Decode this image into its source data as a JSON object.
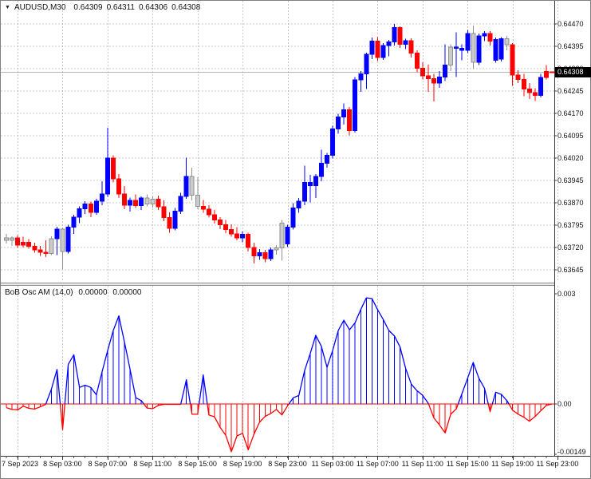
{
  "header": {
    "dropdown_icon": "▼",
    "symbol_period": "AUDUSD,M30",
    "open": "0.64309",
    "high": "0.64311",
    "low": "0.64306",
    "close": "0.64308"
  },
  "indicator": {
    "label": "BoB Osc AM (14,0)",
    "value1": "0.00000",
    "value2": "0.00000"
  },
  "price_axis": {
    "labels": [
      "0.64470",
      "0.64395",
      "0.64320",
      "0.64245",
      "0.64170",
      "0.64095",
      "0.64020",
      "0.63945",
      "0.63870",
      "0.63795",
      "0.63720",
      "0.63645"
    ],
    "current": "0.64308"
  },
  "time_axis": {
    "labels": [
      "7 Sep 2023",
      "8 Sep 03:00",
      "8 Sep 07:00",
      "8 Sep 11:00",
      "8 Sep 15:00",
      "8 Sep 19:00",
      "8 Sep 23:00",
      "11 Sep 03:00",
      "11 Sep 07:00",
      "11 Sep 11:00",
      "11 Sep 15:00",
      "11 Sep 19:00",
      "11 Sep 23:00"
    ]
  },
  "osc_axis": {
    "labels": [
      "0.003",
      "0.00",
      "-0.00149"
    ]
  },
  "colors": {
    "bull": "#0000ff",
    "bear": "#ff0000",
    "neutral_fill": "#cbcbcb",
    "neutral_border": "#8f8f8f",
    "grid": "#c9c9c9",
    "bid_line": "#b4b4b4",
    "zero_line": "#ff0000",
    "axis_line": "#333333",
    "frame": "#808080",
    "badge_bg": "#000000",
    "badge_text": "#ffffff"
  },
  "chart_data": {
    "type": "candlestick",
    "symbol": "AUDUSD",
    "timeframe": "M30",
    "title": "AUDUSD,M30",
    "price_ylim": [
      0.63645,
      0.6447
    ],
    "osc_ylim": [
      -0.00149,
      0.003
    ],
    "grid": true,
    "price_unit": 1e-05,
    "candles": [
      [
        63752,
        63766,
        63734,
        63744,
        "s"
      ],
      [
        63744,
        63758,
        63726,
        63752,
        "s"
      ],
      [
        63752,
        63760,
        63718,
        63728,
        "d"
      ],
      [
        63728,
        63756,
        63720,
        63738,
        "d"
      ],
      [
        63738,
        63748,
        63716,
        63724,
        "d"
      ],
      [
        63724,
        63736,
        63702,
        63712,
        "d"
      ],
      [
        63712,
        63726,
        63692,
        63704,
        "d"
      ],
      [
        63704,
        63744,
        63688,
        63700,
        "d"
      ],
      [
        63700,
        63758,
        63694,
        63750,
        "s"
      ],
      [
        63750,
        63790,
        63694,
        63782,
        "u"
      ],
      [
        63782,
        63786,
        63648,
        63706,
        "s"
      ],
      [
        63706,
        63796,
        63700,
        63788,
        "u"
      ],
      [
        63788,
        63830,
        63766,
        63822,
        "u"
      ],
      [
        63822,
        63858,
        63802,
        63850,
        "u"
      ],
      [
        63850,
        63876,
        63832,
        63866,
        "u"
      ],
      [
        63866,
        63874,
        63822,
        63838,
        "d"
      ],
      [
        63838,
        63884,
        63830,
        63876,
        "u"
      ],
      [
        63876,
        63942,
        63862,
        63900,
        "u"
      ],
      [
        63900,
        64122,
        63890,
        64020,
        "u"
      ],
      [
        64020,
        64030,
        63938,
        63950,
        "d"
      ],
      [
        63950,
        63966,
        63886,
        63900,
        "d"
      ],
      [
        63900,
        63926,
        63848,
        63862,
        "d"
      ],
      [
        63862,
        63888,
        63840,
        63878,
        "u"
      ],
      [
        63878,
        63898,
        63852,
        63860,
        "d"
      ],
      [
        63860,
        63892,
        63846,
        63886,
        "u"
      ],
      [
        63886,
        63898,
        63858,
        63866,
        "s"
      ],
      [
        63866,
        63892,
        63854,
        63882,
        "s"
      ],
      [
        63882,
        63894,
        63846,
        63856,
        "d"
      ],
      [
        63856,
        63878,
        63808,
        63820,
        "d"
      ],
      [
        63820,
        63838,
        63770,
        63784,
        "d"
      ],
      [
        63784,
        63852,
        63778,
        63842,
        "u"
      ],
      [
        63842,
        63904,
        63832,
        63892,
        "u"
      ],
      [
        63892,
        64022,
        63884,
        63958,
        "u"
      ],
      [
        63958,
        63988,
        63878,
        63896,
        "s"
      ],
      [
        63896,
        63956,
        63848,
        63858,
        "s"
      ],
      [
        63858,
        63880,
        63836,
        63848,
        "d"
      ],
      [
        63848,
        63862,
        63820,
        63830,
        "d"
      ],
      [
        63830,
        63846,
        63800,
        63812,
        "d"
      ],
      [
        63812,
        63822,
        63782,
        63796,
        "d"
      ],
      [
        63796,
        63812,
        63768,
        63780,
        "d"
      ],
      [
        63780,
        63798,
        63756,
        63766,
        "d"
      ],
      [
        63766,
        63788,
        63744,
        63752,
        "d"
      ],
      [
        63752,
        63774,
        63738,
        63764,
        "u"
      ],
      [
        63764,
        63770,
        63706,
        63720,
        "d"
      ],
      [
        63720,
        63736,
        63666,
        63692,
        "d"
      ],
      [
        63692,
        63714,
        63678,
        63702,
        "u"
      ],
      [
        63702,
        63712,
        63670,
        63682,
        "d"
      ],
      [
        63682,
        63720,
        63674,
        63712,
        "u"
      ],
      [
        63712,
        63728,
        63696,
        63718,
        "s"
      ],
      [
        63718,
        63812,
        63676,
        63802,
        "s"
      ],
      [
        63732,
        63796,
        63722,
        63788,
        "u"
      ],
      [
        63788,
        63868,
        63780,
        63852,
        "u"
      ],
      [
        63852,
        63886,
        63836,
        63876,
        "u"
      ],
      [
        63876,
        63994,
        63862,
        63938,
        "u"
      ],
      [
        63938,
        63964,
        63872,
        63928,
        "u"
      ],
      [
        63928,
        63966,
        63886,
        63958,
        "u"
      ],
      [
        63958,
        64048,
        63942,
        64002,
        "u"
      ],
      [
        64002,
        64038,
        63988,
        64030,
        "u"
      ],
      [
        64030,
        64128,
        64018,
        64118,
        "u"
      ],
      [
        64118,
        64168,
        64102,
        64158,
        "u"
      ],
      [
        64158,
        64204,
        64132,
        64182,
        "u"
      ],
      [
        64182,
        64192,
        64096,
        64112,
        "d"
      ],
      [
        64112,
        64292,
        64106,
        64282,
        "u"
      ],
      [
        64282,
        64312,
        64242,
        64302,
        "u"
      ],
      [
        64302,
        64374,
        64252,
        64368,
        "u"
      ],
      [
        64368,
        64424,
        64352,
        64412,
        "u"
      ],
      [
        64412,
        64426,
        64346,
        64358,
        "d"
      ],
      [
        64358,
        64406,
        64350,
        64398,
        "u"
      ],
      [
        64398,
        64416,
        64362,
        64410,
        "u"
      ],
      [
        64410,
        64470,
        64398,
        64458,
        "u"
      ],
      [
        64458,
        64462,
        64390,
        64402,
        "d"
      ],
      [
        64402,
        64420,
        64386,
        64414,
        "u"
      ],
      [
        64414,
        64422,
        64358,
        64372,
        "d"
      ],
      [
        64372,
        64382,
        64308,
        64322,
        "d"
      ],
      [
        64322,
        64342,
        64284,
        64296,
        "d"
      ],
      [
        64296,
        64334,
        64242,
        64286,
        "d"
      ],
      [
        64286,
        64302,
        64210,
        64272,
        "d"
      ],
      [
        64272,
        64312,
        64256,
        64292,
        "u"
      ],
      [
        64292,
        64402,
        64278,
        64332,
        "u"
      ],
      [
        64332,
        64402,
        64312,
        64392,
        "s"
      ],
      [
        64392,
        64442,
        64292,
        64388,
        "u"
      ],
      [
        64388,
        64402,
        64348,
        64382,
        "u"
      ],
      [
        64382,
        64450,
        64372,
        64438,
        "u"
      ],
      [
        64438,
        64464,
        64318,
        64342,
        "s"
      ],
      [
        64342,
        64438,
        64332,
        64430,
        "u"
      ],
      [
        64430,
        64446,
        64412,
        64438,
        "u"
      ],
      [
        64438,
        64446,
        64398,
        64412,
        "d"
      ],
      [
        64348,
        64424,
        64340,
        64418,
        "u"
      ],
      [
        64352,
        64426,
        64344,
        64420,
        "u"
      ],
      [
        64420,
        64430,
        64382,
        64400,
        "s"
      ],
      [
        64400,
        64406,
        64262,
        64298,
        "d"
      ],
      [
        64298,
        64314,
        64272,
        64284,
        "d"
      ],
      [
        64284,
        64302,
        64228,
        64252,
        "d"
      ],
      [
        64252,
        64272,
        64218,
        64240,
        "d"
      ],
      [
        64240,
        64254,
        64212,
        64230,
        "d"
      ],
      [
        64230,
        64302,
        64224,
        64290,
        "u"
      ],
      [
        64290,
        64332,
        64284,
        64310,
        "d"
      ],
      [
        64309,
        64311,
        64306,
        64308,
        "d"
      ]
    ],
    "oscillator": {
      "name": "BoB Osc AM",
      "params": "(14,0)",
      "unit": 0.0001,
      "values": [
        -1,
        -1.5,
        -1.6,
        -0.6,
        -1.2,
        -1.4,
        -0.8,
        -0.1,
        4,
        9.4,
        -7,
        10.8,
        13.4,
        4.5,
        5.1,
        4.5,
        2.5,
        8.7,
        14.5,
        20,
        24,
        16.8,
        9.4,
        1.7,
        0.9,
        -1.1,
        -1.3,
        -0.4,
        -0.1,
        -0.1,
        -0.1,
        -0.1,
        6.6,
        -2.8,
        -2.8,
        7.9,
        -3,
        -3.5,
        -6.4,
        -8.5,
        -13,
        -8.7,
        -8,
        -12.5,
        -8.3,
        -5,
        -3.4,
        -2.6,
        -1.5,
        -3,
        -0.5,
        1.7,
        2.3,
        9,
        13.6,
        18.7,
        15.7,
        10,
        14.5,
        20,
        22.8,
        20.2,
        22.1,
        25.7,
        28.9,
        28.7,
        25.7,
        23,
        20,
        18.5,
        15.5,
        9.6,
        5.4,
        3.6,
        2.4,
        0.2,
        -3.8,
        -5.7,
        -7.9,
        -2.8,
        -1.3,
        2.8,
        7,
        11.3,
        7,
        4.3,
        -2.1,
        3.2,
        2.6,
        0.9,
        -1.7,
        -2.8,
        -3.6,
        -4.7,
        -3.4,
        -1.9,
        -0.4,
        0
      ]
    }
  }
}
